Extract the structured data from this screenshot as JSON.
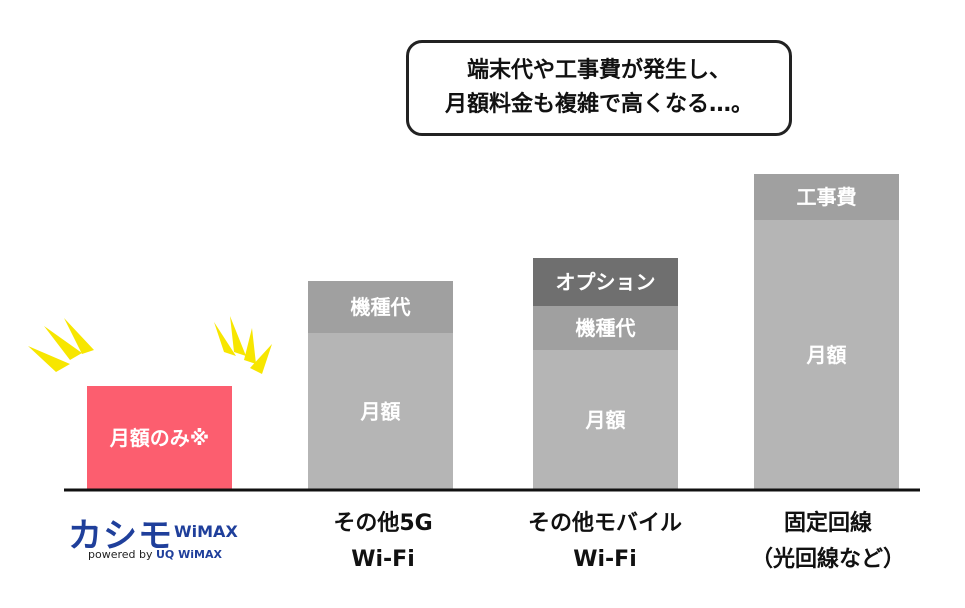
{
  "chart_data": {
    "type": "bar",
    "stacked": true,
    "ylim": [
      0,
      316
    ],
    "categories": [
      {
        "key": "kashimo",
        "lines": []
      },
      {
        "key": "other5g",
        "lines": [
          "その他5G",
          "Wi-Fi"
        ]
      },
      {
        "key": "mobile",
        "lines": [
          "その他モバイル",
          "Wi-Fi"
        ]
      },
      {
        "key": "fixed",
        "lines": [
          "固定回線",
          "（光回線など）"
        ]
      }
    ],
    "bars": [
      {
        "category": "kashimo",
        "segments": [
          {
            "label": "月額のみ※",
            "value": 104,
            "color": "#fc5e6f"
          }
        ]
      },
      {
        "category": "other5g",
        "segments": [
          {
            "label": "月額",
            "value": 157,
            "color": "#b5b5b5"
          },
          {
            "label": "機種代",
            "value": 52,
            "color": "#a0a0a0"
          }
        ]
      },
      {
        "category": "mobile",
        "segments": [
          {
            "label": "月額",
            "value": 140,
            "color": "#b5b5b5"
          },
          {
            "label": "機種代",
            "value": 44,
            "color": "#a0a0a0"
          },
          {
            "label": "オプション",
            "value": 48,
            "color": "#6f6f6f"
          }
        ]
      },
      {
        "category": "fixed",
        "segments": [
          {
            "label": "月額",
            "value": 270,
            "color": "#b5b5b5"
          },
          {
            "label": "工事費",
            "value": 46,
            "color": "#a0a0a0"
          }
        ]
      }
    ],
    "callout": [
      "端末代や工事費が発生し、",
      "月額料金も複雑で高くなる…。"
    ],
    "logo": {
      "name": "カシモ",
      "brand": "WiMAX",
      "powered_by": "powered by",
      "partner": "UQ WiMAX"
    }
  }
}
